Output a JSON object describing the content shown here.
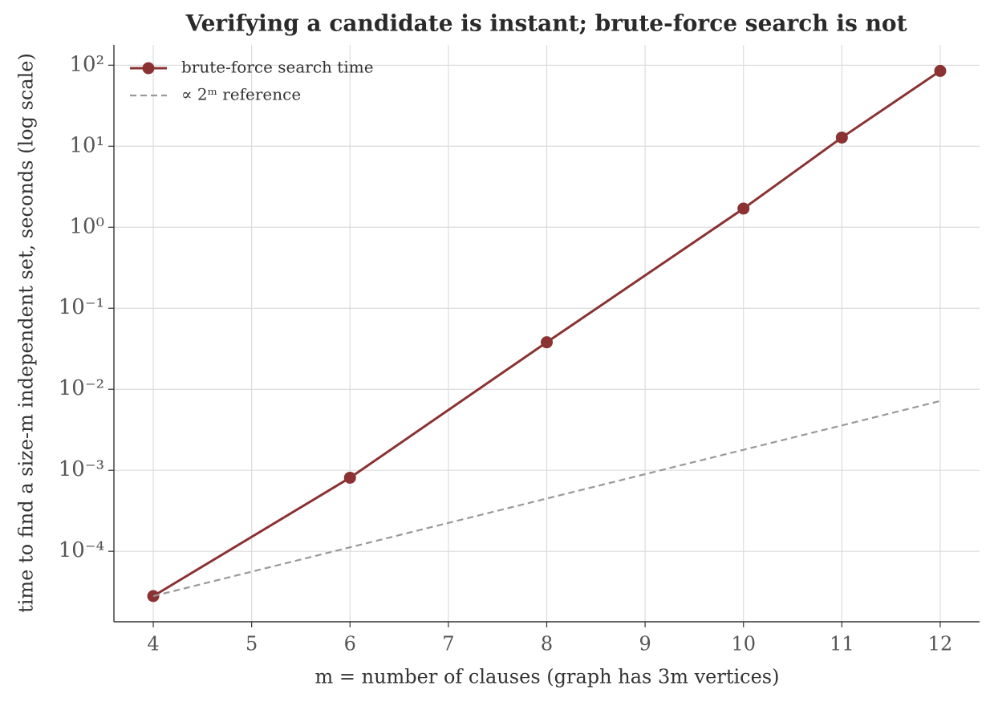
{
  "chart_data": {
    "type": "line",
    "title": "Verifying a candidate is instant; brute-force search is not",
    "x_label": "m = number of clauses (graph has 3m vertices)",
    "y_label": "time to find a size-m independent set, seconds (log scale)",
    "x": [
      4,
      6,
      8,
      10,
      11,
      12
    ],
    "series": [
      {
        "name": "brute-force search time",
        "color": "#8b3232",
        "style": "solid",
        "markers": true,
        "values": [
          2.8e-05,
          0.00081,
          0.038,
          1.7,
          12.8,
          85
        ]
      },
      {
        "name": "∝ 2ᵐ reference",
        "color": "#999999",
        "style": "dashed",
        "markers": false,
        "values": [
          2.8e-05,
          0.000112,
          0.000448,
          0.00179,
          0.00358,
          0.00717
        ]
      }
    ],
    "xlim": [
      3.6,
      12.4
    ],
    "xticks": [
      4,
      5,
      6,
      7,
      8,
      9,
      10,
      11,
      12
    ],
    "ylim": [
      1.35e-05,
      178
    ],
    "y_scale": "log",
    "yticks": [
      {
        "value": 0.0001,
        "label": "10⁻⁴"
      },
      {
        "value": 0.001,
        "label": "10⁻³"
      },
      {
        "value": 0.01,
        "label": "10⁻²"
      },
      {
        "value": 0.1,
        "label": "10⁻¹"
      },
      {
        "value": 1,
        "label": "10⁰"
      },
      {
        "value": 10,
        "label": "10¹"
      },
      {
        "value": 100,
        "label": "10²"
      }
    ],
    "grid": true,
    "legend": "upper-left"
  }
}
